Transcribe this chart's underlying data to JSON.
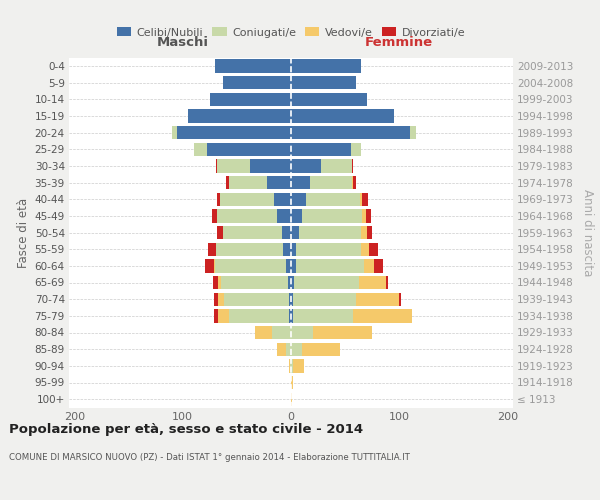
{
  "age_groups": [
    "100+",
    "95-99",
    "90-94",
    "85-89",
    "80-84",
    "75-79",
    "70-74",
    "65-69",
    "60-64",
    "55-59",
    "50-54",
    "45-49",
    "40-44",
    "35-39",
    "30-34",
    "25-29",
    "20-24",
    "15-19",
    "10-14",
    "5-9",
    "0-4"
  ],
  "birth_years": [
    "≤ 1913",
    "1914-1918",
    "1919-1923",
    "1924-1928",
    "1929-1933",
    "1934-1938",
    "1939-1943",
    "1944-1948",
    "1949-1953",
    "1954-1958",
    "1959-1963",
    "1964-1968",
    "1969-1973",
    "1974-1978",
    "1979-1983",
    "1984-1988",
    "1989-1993",
    "1994-1998",
    "1999-2003",
    "2004-2008",
    "2009-2013"
  ],
  "maschi_celibi": [
    0,
    0,
    0,
    0,
    0,
    2,
    2,
    3,
    5,
    7,
    8,
    13,
    16,
    22,
    38,
    78,
    105,
    95,
    75,
    63,
    70
  ],
  "maschi_coniugati": [
    0,
    0,
    1,
    5,
    18,
    55,
    60,
    62,
    65,
    62,
    55,
    55,
    50,
    35,
    30,
    12,
    5,
    0,
    0,
    0,
    0
  ],
  "maschi_vedovi": [
    0,
    0,
    1,
    8,
    15,
    10,
    5,
    2,
    1,
    0,
    0,
    0,
    0,
    0,
    0,
    0,
    0,
    0,
    0,
    0,
    0
  ],
  "maschi_divorziati": [
    0,
    0,
    0,
    0,
    0,
    4,
    4,
    5,
    8,
    8,
    5,
    5,
    2,
    3,
    1,
    0,
    0,
    0,
    0,
    0,
    0
  ],
  "femmine_nubili": [
    0,
    0,
    0,
    0,
    0,
    2,
    2,
    3,
    5,
    5,
    7,
    10,
    14,
    18,
    28,
    55,
    110,
    95,
    70,
    60,
    65
  ],
  "femmine_coniugate": [
    0,
    0,
    2,
    10,
    20,
    55,
    58,
    60,
    62,
    60,
    58,
    56,
    50,
    38,
    28,
    10,
    5,
    0,
    0,
    0,
    0
  ],
  "femmine_vedove": [
    1,
    2,
    10,
    35,
    55,
    55,
    40,
    25,
    10,
    7,
    5,
    3,
    2,
    1,
    0,
    0,
    0,
    0,
    0,
    0,
    0
  ],
  "femmine_divorziate": [
    0,
    0,
    0,
    0,
    0,
    0,
    2,
    2,
    8,
    8,
    5,
    5,
    5,
    3,
    1,
    0,
    0,
    0,
    0,
    0,
    0
  ],
  "color_celibi": "#4472a8",
  "color_coniugati": "#c8d9a8",
  "color_vedovi": "#f5c96a",
  "color_divorziati": "#cc2222",
  "title": "Popolazione per età, sesso e stato civile - 2014",
  "subtitle": "COMUNE DI MARSICO NUOVO (PZ) - Dati ISTAT 1° gennaio 2014 - Elaborazione TUTTITALIA.IT",
  "label_maschi": "Maschi",
  "label_femmine": "Femmine",
  "label_fascia": "Fasce di età",
  "label_anni": "Anni di nascita",
  "legend_labels": [
    "Celibi/Nubili",
    "Coniugati/e",
    "Vedovi/e",
    "Divorziati/e"
  ],
  "xlim": 205,
  "bg_color": "#f0f0ee",
  "plot_bg": "#ffffff"
}
